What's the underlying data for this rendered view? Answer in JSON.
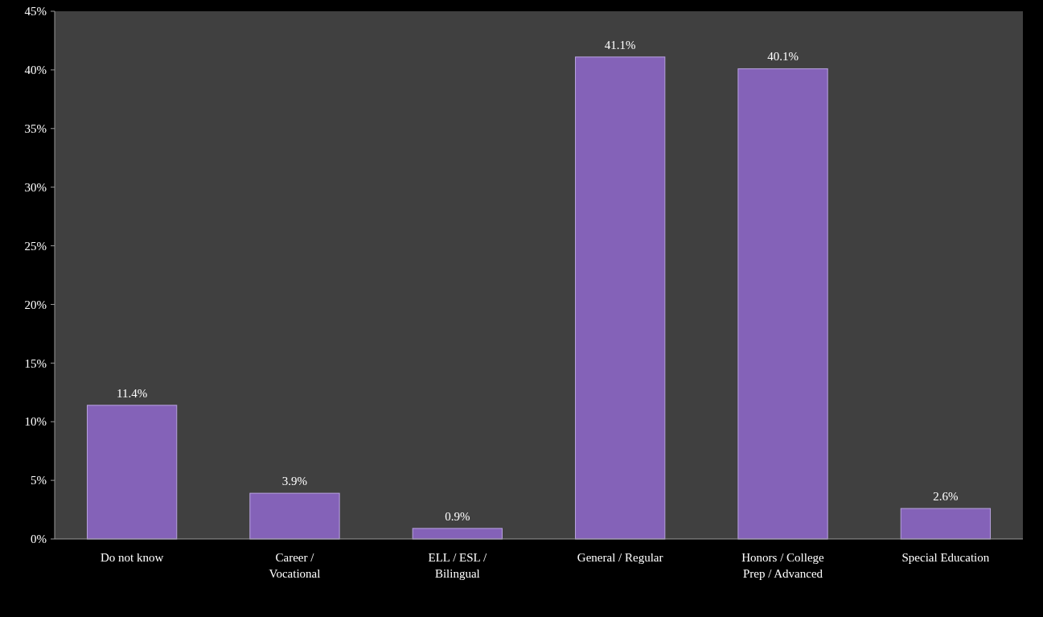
{
  "chart_data": {
    "type": "bar",
    "categories": [
      "Do not know",
      "Career / Vocational",
      "ELL / ESL / Bilingual",
      "General / Regular",
      "Honors / College Prep / Advanced",
      "Special Education"
    ],
    "values": [
      11.4,
      3.9,
      0.9,
      41.1,
      40.1,
      2.6
    ],
    "value_labels": [
      "11.4%",
      "3.9%",
      "0.9%",
      "41.1%",
      "40.1%",
      "2.6%"
    ],
    "color": "#8462b8",
    "ylim": [
      0,
      45
    ],
    "yticks": [
      {
        "value": 0,
        "label": "0%"
      },
      {
        "value": 5,
        "label": "5%"
      },
      {
        "value": 10,
        "label": "10%"
      },
      {
        "value": 15,
        "label": "15%"
      },
      {
        "value": 20,
        "label": "20%"
      },
      {
        "value": 25,
        "label": "25%"
      },
      {
        "value": 30,
        "label": "30%"
      },
      {
        "value": 35,
        "label": "35%"
      },
      {
        "value": 40,
        "label": "40%"
      },
      {
        "value": 45,
        "label": "45%"
      }
    ],
    "grid": false
  }
}
